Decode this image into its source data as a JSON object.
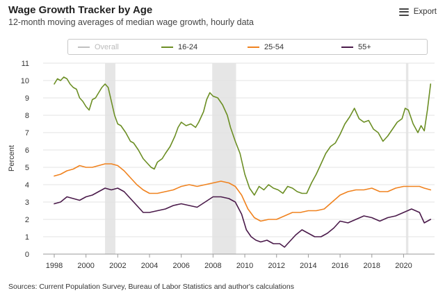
{
  "header": {
    "title": "Wage Growth Tracker by Age",
    "subtitle": "12-month moving averages of median wage growth, hourly data",
    "export_label": "Export",
    "export_icon": "hamburger-menu-icon"
  },
  "footer": {
    "sources": "Sources: Current Population Survey, Bureau of Labor Statistics and author's calculations"
  },
  "chart_data": {
    "type": "line",
    "title": "Wage Growth Tracker by Age",
    "subtitle": "12-month moving averages of median wage growth, hourly data",
    "xlabel": "",
    "ylabel": "Percent",
    "xlim": [
      1997.3,
      2021.95
    ],
    "ylim": [
      0,
      11
    ],
    "x_ticks": [
      "1998",
      "2000",
      "2002",
      "2004",
      "2006",
      "2008",
      "2010",
      "2012",
      "2014",
      "2016",
      "2018",
      "2020"
    ],
    "x_tick_values": [
      1998,
      2000,
      2002,
      2004,
      2006,
      2008,
      2010,
      2012,
      2014,
      2016,
      2018,
      2020
    ],
    "y_ticks": [
      "0",
      "1",
      "2",
      "3",
      "4",
      "5",
      "6",
      "7",
      "8",
      "9",
      "10",
      "11"
    ],
    "y_tick_values": [
      0,
      1,
      2,
      3,
      4,
      5,
      6,
      7,
      8,
      9,
      10,
      11
    ],
    "recessions": [
      [
        2001.2,
        2001.85
      ],
      [
        2007.95,
        2009.45
      ],
      [
        2020.15,
        2020.3
      ]
    ],
    "series": [
      {
        "name": "Overall",
        "color": "#c0c0c0",
        "visible": false,
        "x": [],
        "values": []
      },
      {
        "name": "16-24",
        "color": "#6b8e23",
        "visible": true,
        "x": [
          1998.0,
          1998.2,
          1998.4,
          1998.6,
          1998.8,
          1999.0,
          1999.2,
          1999.4,
          1999.6,
          1999.8,
          2000.0,
          2000.2,
          2000.4,
          2000.6,
          2000.8,
          2001.0,
          2001.2,
          2001.4,
          2001.6,
          2001.8,
          2002.0,
          2002.2,
          2002.5,
          2002.8,
          2003.0,
          2003.3,
          2003.6,
          2003.9,
          2004.1,
          2004.3,
          2004.5,
          2004.8,
          2005.0,
          2005.3,
          2005.6,
          2005.8,
          2006.0,
          2006.3,
          2006.6,
          2006.9,
          2007.1,
          2007.4,
          2007.6,
          2007.8,
          2008.0,
          2008.3,
          2008.6,
          2008.9,
          2009.1,
          2009.4,
          2009.7,
          2010.0,
          2010.3,
          2010.6,
          2010.9,
          2011.2,
          2011.5,
          2011.8,
          2012.1,
          2012.4,
          2012.7,
          2013.0,
          2013.3,
          2013.6,
          2013.9,
          2014.2,
          2014.5,
          2014.8,
          2015.1,
          2015.4,
          2015.7,
          2016.0,
          2016.3,
          2016.6,
          2016.9,
          2017.2,
          2017.5,
          2017.8,
          2018.1,
          2018.4,
          2018.7,
          2019.0,
          2019.3,
          2019.6,
          2019.9,
          2020.1,
          2020.3,
          2020.6,
          2020.9,
          2021.1,
          2021.3,
          2021.5,
          2021.7
        ],
        "values": [
          9.8,
          10.1,
          10.0,
          10.2,
          10.1,
          9.8,
          9.6,
          9.5,
          9.0,
          8.8,
          8.5,
          8.3,
          8.9,
          9.0,
          9.3,
          9.6,
          9.8,
          9.6,
          8.8,
          8.0,
          7.5,
          7.4,
          7.0,
          6.5,
          6.4,
          6.0,
          5.5,
          5.2,
          5.0,
          4.9,
          5.3,
          5.5,
          5.8,
          6.2,
          6.8,
          7.3,
          7.6,
          7.4,
          7.5,
          7.3,
          7.6,
          8.2,
          8.9,
          9.3,
          9.1,
          9.0,
          8.6,
          8.0,
          7.3,
          6.5,
          5.8,
          4.6,
          3.8,
          3.4,
          3.9,
          3.7,
          4.0,
          3.8,
          3.7,
          3.5,
          3.9,
          3.8,
          3.6,
          3.5,
          3.5,
          4.1,
          4.6,
          5.2,
          5.8,
          6.2,
          6.4,
          6.9,
          7.5,
          7.9,
          8.4,
          7.8,
          7.6,
          7.7,
          7.2,
          7.0,
          6.5,
          6.8,
          7.2,
          7.6,
          7.8,
          8.4,
          8.3,
          7.5,
          7.0,
          7.4,
          7.1,
          8.3,
          9.8
        ]
      },
      {
        "name": "25-54",
        "color": "#f0821e",
        "visible": true,
        "x": [
          1998.0,
          1998.4,
          1998.8,
          1999.2,
          1999.6,
          2000.0,
          2000.4,
          2000.8,
          2001.2,
          2001.6,
          2002.0,
          2002.4,
          2002.8,
          2003.2,
          2003.6,
          2004.0,
          2004.5,
          2005.0,
          2005.5,
          2006.0,
          2006.5,
          2007.0,
          2007.5,
          2008.0,
          2008.5,
          2009.0,
          2009.4,
          2009.8,
          2010.2,
          2010.6,
          2011.0,
          2011.5,
          2012.0,
          2012.5,
          2013.0,
          2013.5,
          2014.0,
          2014.5,
          2015.0,
          2015.5,
          2016.0,
          2016.5,
          2017.0,
          2017.5,
          2018.0,
          2018.5,
          2019.0,
          2019.5,
          2020.0,
          2020.5,
          2021.0,
          2021.3,
          2021.7
        ],
        "values": [
          4.5,
          4.6,
          4.8,
          4.9,
          5.1,
          5.0,
          5.0,
          5.1,
          5.2,
          5.2,
          5.1,
          4.8,
          4.4,
          4.0,
          3.7,
          3.5,
          3.5,
          3.6,
          3.7,
          3.9,
          4.0,
          3.9,
          4.0,
          4.1,
          4.2,
          4.1,
          3.9,
          3.4,
          2.6,
          2.1,
          1.9,
          2.0,
          2.0,
          2.2,
          2.4,
          2.4,
          2.5,
          2.5,
          2.6,
          3.0,
          3.4,
          3.6,
          3.7,
          3.7,
          3.8,
          3.6,
          3.6,
          3.8,
          3.9,
          3.9,
          3.9,
          3.8,
          3.7
        ]
      },
      {
        "name": "55+",
        "color": "#4a1a4a",
        "visible": true,
        "x": [
          1998.0,
          1998.4,
          1998.8,
          1999.2,
          1999.6,
          2000.0,
          2000.4,
          2000.8,
          2001.2,
          2001.6,
          2002.0,
          2002.4,
          2002.8,
          2003.2,
          2003.6,
          2004.0,
          2004.5,
          2005.0,
          2005.5,
          2006.0,
          2006.5,
          2007.0,
          2007.5,
          2008.0,
          2008.5,
          2009.0,
          2009.4,
          2009.8,
          2010.1,
          2010.4,
          2010.7,
          2011.0,
          2011.4,
          2011.8,
          2012.2,
          2012.5,
          2012.8,
          2013.2,
          2013.6,
          2014.0,
          2014.4,
          2014.8,
          2015.2,
          2015.6,
          2016.0,
          2016.5,
          2017.0,
          2017.5,
          2018.0,
          2018.5,
          2019.0,
          2019.5,
          2020.0,
          2020.5,
          2021.0,
          2021.3,
          2021.7
        ],
        "values": [
          2.9,
          3.0,
          3.3,
          3.2,
          3.1,
          3.3,
          3.4,
          3.6,
          3.8,
          3.7,
          3.8,
          3.6,
          3.2,
          2.8,
          2.4,
          2.4,
          2.5,
          2.6,
          2.8,
          2.9,
          2.8,
          2.7,
          3.0,
          3.3,
          3.3,
          3.2,
          3.0,
          2.3,
          1.4,
          1.0,
          0.8,
          0.7,
          0.8,
          0.6,
          0.6,
          0.4,
          0.7,
          1.1,
          1.4,
          1.2,
          1.0,
          1.0,
          1.2,
          1.5,
          1.9,
          1.8,
          2.0,
          2.2,
          2.1,
          1.9,
          2.1,
          2.2,
          2.4,
          2.6,
          2.4,
          1.8,
          2.0
        ]
      }
    ]
  }
}
